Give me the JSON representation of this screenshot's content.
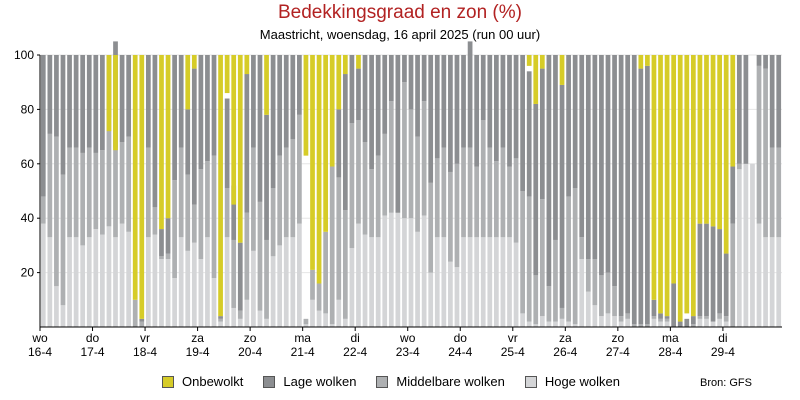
{
  "title": "Bedekkingsgraad en zon (%)",
  "subtitle": "Maastricht, woensdag, 16 april 2025 (run 00 uur)",
  "source": "Bron: GFS",
  "colors": {
    "sun": "#d6cc28",
    "low": "#8c8e91",
    "mid": "#aeb0b2",
    "high": "#d4d5d7",
    "axis": "#000000"
  },
  "legend": [
    {
      "label": "Onbewolkt",
      "color": "#d6cc28"
    },
    {
      "label": "Lage wolken",
      "color": "#8c8e91"
    },
    {
      "label": "Middelbare wolken",
      "color": "#aeb0b2"
    },
    {
      "label": "Hoge wolken",
      "color": "#d4d5d7"
    }
  ],
  "chart_data": {
    "type": "bar",
    "stacked": true,
    "title": "Bedekkingsgraad en zon (%)",
    "ylim": [
      0,
      100
    ],
    "yticks": [
      20,
      40,
      60,
      80,
      100
    ],
    "grid": true,
    "legend_position": "bottom",
    "bars_per_day": 8,
    "x_tick_labels": [
      {
        "day": "wo",
        "date": "16-4"
      },
      {
        "day": "do",
        "date": "17-4"
      },
      {
        "day": "vr",
        "date": "18-4"
      },
      {
        "day": "za",
        "date": "19-4"
      },
      {
        "day": "zo",
        "date": "20-4"
      },
      {
        "day": "ma",
        "date": "21-4"
      },
      {
        "day": "di",
        "date": "22-4"
      },
      {
        "day": "wo",
        "date": "23-4"
      },
      {
        "day": "do",
        "date": "24-4"
      },
      {
        "day": "vr",
        "date": "25-4"
      },
      {
        "day": "za",
        "date": "26-4"
      },
      {
        "day": "zo",
        "date": "27-4"
      },
      {
        "day": "ma",
        "date": "28-4"
      },
      {
        "day": "di",
        "date": "29-4"
      }
    ],
    "series": [
      {
        "name": "Hoge wolken",
        "values": [
          38,
          33,
          15,
          8,
          33,
          33,
          30,
          33,
          36,
          34,
          37,
          33,
          38,
          35,
          0,
          0,
          33,
          34,
          25,
          25,
          18,
          33,
          28,
          31,
          25,
          33,
          18,
          2,
          33,
          7,
          3,
          10,
          28,
          6,
          3,
          26,
          30,
          33,
          33,
          38,
          1,
          10,
          6,
          5,
          1,
          10,
          3,
          29,
          38,
          34,
          33,
          33,
          41,
          42,
          42,
          40,
          40,
          35,
          41,
          20,
          33,
          33,
          24,
          22,
          33,
          33,
          33,
          33,
          33,
          33,
          33,
          33,
          31,
          5,
          2,
          1,
          4,
          2,
          2,
          3,
          2,
          1,
          25,
          13,
          8,
          4,
          5,
          4,
          2,
          3,
          0,
          0,
          0,
          3,
          2,
          2,
          0,
          0,
          0,
          0,
          3,
          3,
          2,
          3,
          2,
          0,
          58,
          60,
          60,
          38,
          33,
          33,
          33
        ]
      },
      {
        "name": "Middelbare wolken",
        "values": [
          10,
          38,
          55,
          48,
          33,
          33,
          34,
          33,
          28,
          31,
          40,
          33,
          30,
          35,
          10,
          2,
          33,
          10,
          1,
          2,
          36,
          33,
          28,
          14,
          33,
          28,
          45,
          1,
          18,
          25,
          3,
          32,
          38,
          40,
          29,
          25,
          33,
          33,
          36,
          40,
          2,
          11,
          10,
          30,
          58,
          45,
          40,
          46,
          38,
          34,
          25,
          30,
          30,
          41,
          0,
          50,
          40,
          35,
          42,
          33,
          29,
          33,
          33,
          38,
          33,
          33,
          26,
          43,
          33,
          28,
          33,
          26,
          31,
          45,
          46,
          18,
          43,
          13,
          30,
          4,
          46,
          50,
          8,
          12,
          17,
          15,
          15,
          11,
          2,
          2,
          1,
          1,
          1,
          1,
          1,
          1,
          0,
          0,
          0,
          1,
          1,
          1,
          0,
          2,
          2,
          38,
          2,
          0,
          0,
          58,
          62,
          33,
          33
        ]
      },
      {
        "name": "Lage wolken",
        "values": [
          52,
          29,
          30,
          44,
          34,
          34,
          36,
          34,
          36,
          35,
          23,
          39,
          32,
          30,
          0,
          1,
          34,
          56,
          10,
          13,
          46,
          34,
          24,
          50,
          42,
          39,
          37,
          1,
          33,
          20,
          25,
          51,
          34,
          54,
          46,
          49,
          37,
          34,
          31,
          22,
          0,
          0,
          0,
          0,
          0,
          25,
          50,
          25,
          19,
          32,
          42,
          37,
          29,
          17,
          58,
          10,
          20,
          30,
          17,
          47,
          38,
          34,
          43,
          40,
          34,
          39,
          41,
          24,
          34,
          39,
          34,
          41,
          38,
          50,
          46,
          63,
          48,
          85,
          68,
          82,
          52,
          49,
          67,
          75,
          75,
          81,
          80,
          85,
          96,
          95,
          99,
          94,
          95,
          6,
          2,
          1,
          16,
          2,
          3,
          3,
          34,
          34,
          35,
          31,
          23,
          21,
          40,
          40,
          0,
          4,
          5,
          34,
          34
        ]
      }
    ],
    "sun_values": [
      0,
      0,
      0,
      0,
      0,
      0,
      0,
      0,
      0,
      0,
      28,
      35,
      0,
      0,
      90,
      97,
      0,
      0,
      64,
      60,
      0,
      0,
      20,
      5,
      0,
      0,
      0,
      96,
      14,
      55,
      69,
      7,
      0,
      0,
      22,
      0,
      0,
      0,
      0,
      0,
      37,
      79,
      84,
      65,
      41,
      20,
      7,
      0,
      5,
      0,
      0,
      0,
      0,
      0,
      0,
      0,
      0,
      0,
      0,
      0,
      0,
      0,
      0,
      0,
      0,
      0,
      0,
      0,
      0,
      0,
      0,
      0,
      0,
      0,
      4,
      18,
      5,
      0,
      0,
      11,
      0,
      0,
      0,
      0,
      0,
      0,
      0,
      0,
      0,
      0,
      0,
      5,
      4,
      90,
      95,
      96,
      84,
      98,
      95,
      96,
      62,
      62,
      63,
      64,
      73,
      41,
      0,
      0,
      0,
      0,
      0,
      0,
      0
    ]
  }
}
